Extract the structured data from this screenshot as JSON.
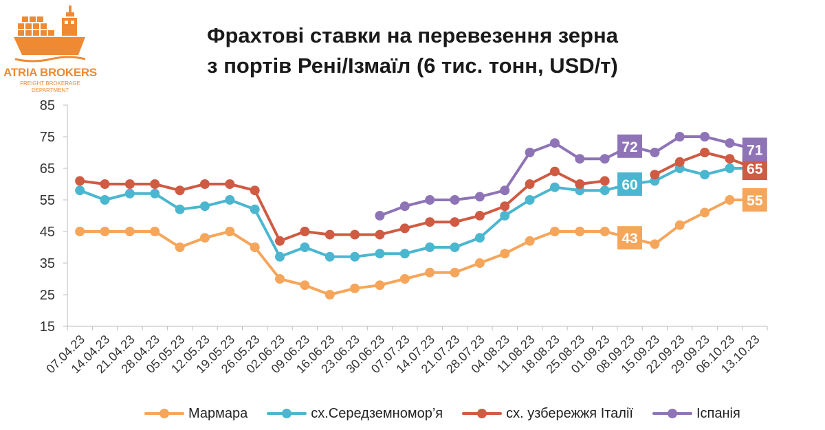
{
  "logo": {
    "name": "ATRIA BROKERS",
    "sub1": "FREIGHT BROKERAGE",
    "sub2": "DEPARTMENT"
  },
  "chart_data": {
    "type": "line",
    "title": "Фрахтові ставки на перевезення зерна з портів Рені/Ізмаїл (6 тис. тонн, USD/т)",
    "title_lines": [
      "Фрахтові ставки на перевезення зерна",
      "з портів Рені/Ізмаїл (6 тис. тонн, USD/т)"
    ],
    "xlabel": "",
    "ylabel": "",
    "ylim": [
      15,
      85
    ],
    "yticks": [
      15,
      25,
      35,
      45,
      55,
      65,
      75,
      85
    ],
    "grid": false,
    "legend_position": "bottom",
    "x": [
      "07.04.23",
      "14.04.23",
      "21.04.23",
      "28.04.23",
      "05.05.23",
      "12.05.23",
      "19.05.23",
      "26.05.23",
      "02.06.23",
      "09.06.23",
      "16.06.23",
      "23.06.23",
      "30.06.23",
      "07.07.23",
      "14.07.23",
      "21.07.23",
      "28.07.23",
      "04.08.23",
      "11.08.23",
      "18.08.23",
      "25.08.23",
      "01.09.23",
      "08.09.23",
      "15.09.23",
      "22.09.23",
      "29.09.23",
      "06.10.23",
      "13.10.23"
    ],
    "series": [
      {
        "name": "Мармара",
        "color": "#f5a65b",
        "values": [
          45,
          45,
          45,
          45,
          40,
          43,
          45,
          40,
          30,
          28,
          25,
          27,
          28,
          30,
          32,
          32,
          35,
          38,
          42,
          45,
          45,
          45,
          43,
          41,
          47,
          51,
          55,
          55
        ],
        "labels": [
          {
            "index": 22,
            "text": "43"
          },
          {
            "index": 27,
            "text": "55"
          }
        ]
      },
      {
        "name": "сх.Середземномор’я",
        "color": "#4bb6cf",
        "values": [
          58,
          55,
          57,
          57,
          52,
          53,
          55,
          52,
          37,
          40,
          37,
          37,
          38,
          38,
          40,
          40,
          43,
          50,
          55,
          59,
          58,
          58,
          60,
          61,
          65,
          63,
          65,
          65
        ],
        "labels": [
          {
            "index": 22,
            "text": "60"
          },
          {
            "index": 27,
            "text": "65"
          }
        ]
      },
      {
        "name": "сх. узбережжя Італії",
        "color": "#cf5b43",
        "values": [
          61,
          60,
          60,
          60,
          58,
          60,
          60,
          58,
          42,
          45,
          44,
          44,
          44,
          46,
          48,
          48,
          50,
          53,
          60,
          64,
          60,
          61,
          null,
          63,
          67,
          70,
          68,
          65
        ],
        "labels": [
          {
            "index": 27,
            "text": "65"
          }
        ]
      },
      {
        "name": "Іспанія",
        "color": "#8e74b6",
        "values": [
          null,
          null,
          null,
          null,
          null,
          null,
          null,
          null,
          null,
          null,
          null,
          null,
          50,
          53,
          55,
          55,
          56,
          58,
          70,
          73,
          68,
          68,
          72,
          70,
          75,
          75,
          73,
          71
        ],
        "labels": [
          {
            "index": 22,
            "text": "72"
          },
          {
            "index": 27,
            "text": "71"
          }
        ]
      }
    ]
  }
}
